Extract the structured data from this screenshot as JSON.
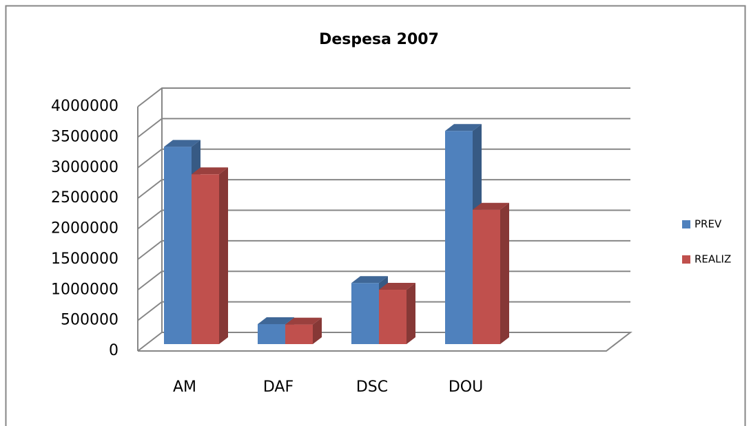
{
  "chart_data": {
    "type": "bar3d",
    "title": "Despesa 2007",
    "categories": [
      "AM",
      "DAF",
      "DSC",
      "DOU"
    ],
    "series": [
      {
        "name": "PREV",
        "color": "#4f81bd",
        "values": [
          3230000,
          327000,
          1000000,
          3490000
        ]
      },
      {
        "name": "REALIZ",
        "color": "#c0504d",
        "values": [
          2780000,
          320000,
          890000,
          2200000
        ]
      }
    ],
    "ylim": [
      0,
      4000000
    ],
    "yticks": [
      0,
      500000,
      1000000,
      1500000,
      2000000,
      2500000,
      3000000,
      3500000,
      4000000
    ],
    "grid": true,
    "legend": "right"
  }
}
